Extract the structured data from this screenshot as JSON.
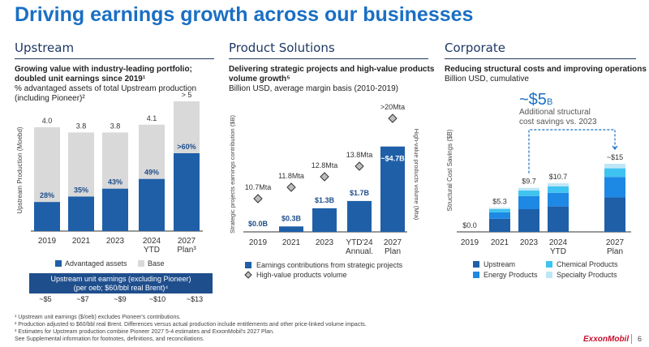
{
  "title": "Driving earnings growth across our businesses",
  "colors": {
    "dark": "#1f5fa8",
    "gray": "#d9d9d9",
    "mid": "#1e88e5",
    "light": "#3fc3f0",
    "pale": "#bfe6f7",
    "accent": "#1a6fc4"
  },
  "upstream": {
    "header": "Upstream",
    "subtitle_bold_1": "Growing value with industry-leading portfolio;",
    "subtitle_bold_2": "doubled unit earnings since 2019¹",
    "subtitle_3": "% advantaged assets of total Upstream production",
    "subtitle_4": "(including Pioneer)²",
    "legend_advantaged": "Advantaged assets",
    "legend_base": "Base",
    "unit_box_line1": "Upstream unit earnings (excluding Pioneer)",
    "unit_box_line2": "(per oeb; $60/bbl real Brent)⁴",
    "unit_values": [
      "~$5",
      "~$7",
      "~$9",
      "~$10",
      "~$13"
    ]
  },
  "product": {
    "header": "Product Solutions",
    "subtitle_bold_1": "Delivering strategic projects and high-value products",
    "subtitle_bold_2": "volume growth⁵",
    "subtitle_3": "Billion USD, average margin basis (2010-2019)",
    "legend_earnings": "Earnings contributions from strategic projects",
    "legend_volume": "High-value products volume"
  },
  "corporate": {
    "header": "Corporate",
    "subtitle_bold_1": "Reducing structural costs and improving operations",
    "subtitle_2": "Billion USD, cumulative",
    "callout_value": "~$5",
    "callout_unit": "B",
    "callout_line1": "Additional structural",
    "callout_line2": "cost savings vs. 2023",
    "legend": [
      "Upstream",
      "Chemical Products",
      "Energy Products",
      "Specialty Products"
    ]
  },
  "footnotes": [
    "¹ Upstream unit earnings ($/oeb) excludes Pioneer's contributions.",
    "² Production adjusted to $60/bbl real Brent. Differences versus actual production include entitlements and other price-linked volume impacts.",
    "³ Estimates for Upstream production combine Pioneer 2027 5-4 estimates and ExxonMobil's 2027 Plan.",
    "See Supplemental information for footnotes, definitions, and reconciliations."
  ],
  "logo": "ExxonMobil",
  "page_number": "6",
  "chart_data": [
    {
      "type": "bar",
      "ylabel": "Upstream Production (Moebd)",
      "categories": [
        "2019",
        "2021",
        "2023",
        "2024\nYTD",
        "2027\nPlan³"
      ],
      "totals": [
        4.0,
        3.8,
        3.8,
        4.1,
        5.0
      ],
      "total_labels": [
        "4.0",
        "3.8",
        "3.8",
        "4.1",
        "> 5"
      ],
      "advantaged_pct": [
        28,
        35,
        43,
        49,
        60
      ],
      "pct_labels": [
        "28%",
        "35%",
        "43%",
        "49%",
        ">60%"
      ],
      "series": [
        {
          "name": "Advantaged assets"
        },
        {
          "name": "Base"
        }
      ],
      "ylim": [
        0,
        5.5
      ]
    },
    {
      "type": "bar",
      "ylabel": "Strategic projects earnings contribution ($B)",
      "y2label": "High-value products volume (Mta)",
      "categories": [
        "2019",
        "2021",
        "2023",
        "YTD'24\nAnnual.",
        "2027\nPlan"
      ],
      "series": [
        {
          "name": "Earnings contributions from strategic projects",
          "values": [
            0.0,
            0.3,
            1.3,
            1.7,
            4.7
          ],
          "labels": [
            "$0.0B",
            "$0.3B",
            "$1.3B",
            "$1.7B",
            "~$4.7B"
          ]
        },
        {
          "name": "High-value products volume",
          "values": [
            10.7,
            11.8,
            12.8,
            13.8,
            20
          ],
          "labels": [
            "10.7Mta",
            "11.8Mta",
            "12.8Mta",
            "13.8Mta",
            ">20Mta"
          ]
        }
      ],
      "ylim": [
        0,
        5.2
      ]
    },
    {
      "type": "bar",
      "ylabel": "Structural Cost Savings ($B)",
      "categories": [
        "2019",
        "2021",
        "2023",
        "2024\nYTD",
        "2027\nPlan"
      ],
      "totals": [
        0.0,
        5.3,
        9.7,
        10.7,
        15
      ],
      "total_labels": [
        "$0.0",
        "$5.3",
        "$9.7",
        "$10.7",
        "~$15"
      ],
      "series": [
        {
          "name": "Upstream",
          "values": [
            0,
            2.9,
            5.0,
            5.6,
            7.6
          ]
        },
        {
          "name": "Energy Products",
          "values": [
            0,
            1.4,
            2.9,
            3.0,
            4.5
          ]
        },
        {
          "name": "Chemical Products",
          "values": [
            0,
            0.7,
            1.2,
            1.4,
            1.9
          ]
        },
        {
          "name": "Specialty Products",
          "values": [
            0,
            0.3,
            0.6,
            0.7,
            1.0
          ]
        }
      ],
      "ylim": [
        0,
        16.5
      ]
    }
  ]
}
